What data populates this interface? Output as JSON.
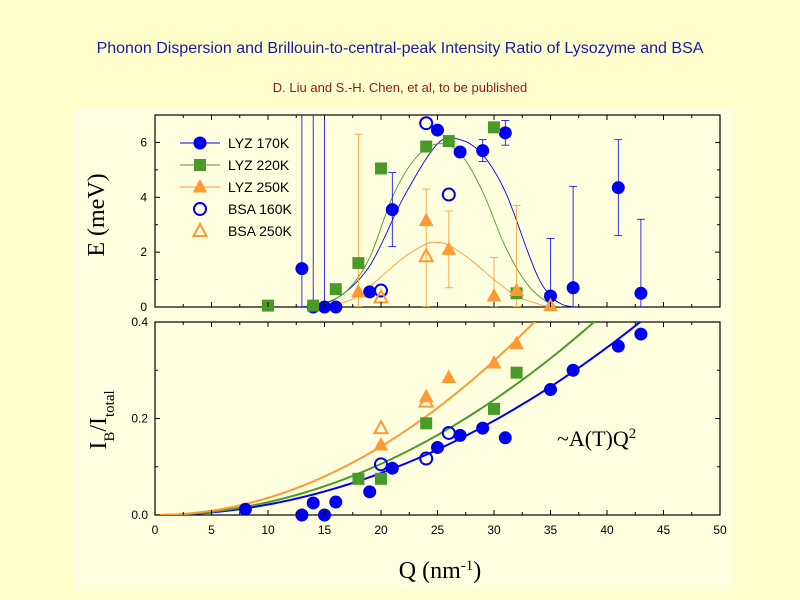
{
  "header": {
    "title": "Phonon Dispersion and Brillouin-to-central-peak Intensity Ratio of Lysozyme and BSA",
    "subtitle": "D. Liu and S.-H. Chen, et al, to be published"
  },
  "chart_data": [
    {
      "type": "scatter",
      "ylabel": "E (meV)",
      "xlim": [
        0,
        50
      ],
      "ylim": [
        0,
        7
      ],
      "yticks": [
        "0",
        "2",
        "4",
        "6"
      ],
      "legend_position": "top-left",
      "series": [
        {
          "name": "LYZ 170K",
          "color": "#0000ee",
          "marker": "filled-circle",
          "points": [
            [
              13,
              1.4
            ],
            [
              14,
              0
            ],
            [
              15,
              0
            ],
            [
              16,
              0
            ],
            [
              19,
              0.55
            ],
            [
              21,
              3.55
            ],
            [
              25,
              6.45
            ],
            [
              27,
              5.65
            ],
            [
              29,
              5.7
            ],
            [
              31,
              6.35
            ],
            [
              35,
              0.4
            ],
            [
              37,
              0.7
            ],
            [
              41,
              4.35
            ],
            [
              43,
              0.5
            ]
          ],
          "error": [
            [
              13,
              0,
              7
            ],
            [
              14,
              0,
              7
            ],
            [
              15,
              0,
              7
            ],
            [
              21,
              2.2,
              4.9
            ],
            [
              29,
              5.3,
              6.1
            ],
            [
              31,
              5.9,
              6.8
            ],
            [
              35,
              0,
              2.5
            ],
            [
              37,
              0,
              4.4
            ],
            [
              41,
              2.6,
              6.1
            ],
            [
              43,
              0,
              3.2
            ]
          ]
        },
        {
          "name": "LYZ 220K",
          "color": "#4a9a2a",
          "marker": "filled-square",
          "points": [
            [
              10,
              0.05
            ],
            [
              14,
              0.05
            ],
            [
              16,
              0.65
            ],
            [
              18,
              1.6
            ],
            [
              20,
              5.05
            ],
            [
              24,
              5.85
            ],
            [
              26,
              6.05
            ],
            [
              30,
              6.55
            ],
            [
              32,
              0.5
            ]
          ],
          "error": []
        },
        {
          "name": "LYZ 250K",
          "color": "#ff9933",
          "marker": "filled-triangle",
          "points": [
            [
              18,
              0.55
            ],
            [
              24,
              3.15
            ],
            [
              26,
              2.1
            ],
            [
              30,
              0.4
            ],
            [
              32,
              0.6
            ],
            [
              35,
              0.05
            ]
          ],
          "error": [
            [
              18,
              0,
              6.3
            ],
            [
              24,
              0,
              4.3
            ],
            [
              26,
              0.7,
              3.5
            ],
            [
              30,
              0,
              1.8
            ],
            [
              32,
              0,
              3.7
            ]
          ]
        },
        {
          "name": "BSA 160K",
          "color": "#0000ee",
          "marker": "open-circle",
          "points": [
            [
              20,
              0.6
            ],
            [
              24,
              6.7
            ],
            [
              26,
              4.1
            ]
          ],
          "error": []
        },
        {
          "name": "BSA 250K",
          "color": "#ff9933",
          "marker": "open-triangle",
          "points": [
            [
              20,
              0.35
            ],
            [
              24,
              1.85
            ]
          ],
          "error": []
        }
      ],
      "fits": [
        {
          "color": "#0000ee",
          "points": [
            [
              13,
              0
            ],
            [
              16,
              0.3
            ],
            [
              19,
              1.5
            ],
            [
              22,
              4.0
            ],
            [
              25,
              5.95
            ],
            [
              27,
              6.1
            ],
            [
              29,
              5.55
            ],
            [
              31,
              4.2
            ],
            [
              33,
              2.0
            ],
            [
              34,
              1.0
            ],
            [
              35,
              0.4
            ],
            [
              36,
              0.1
            ],
            [
              37,
              0
            ]
          ]
        },
        {
          "color": "#4a9a2a",
          "points": [
            [
              13,
              0
            ],
            [
              15,
              0.15
            ],
            [
              17,
              0.6
            ],
            [
              19,
              1.8
            ],
            [
              21,
              4.0
            ],
            [
              23,
              5.4
            ],
            [
              25,
              5.95
            ],
            [
              27,
              5.6
            ],
            [
              29,
              4.2
            ],
            [
              31,
              2.2
            ],
            [
              33,
              0.8
            ],
            [
              35,
              0.1
            ],
            [
              36,
              0
            ]
          ]
        },
        {
          "color": "#ff9933",
          "points": [
            [
              14,
              0
            ],
            [
              16,
              0.1
            ],
            [
              18,
              0.4
            ],
            [
              20,
              1.1
            ],
            [
              22,
              1.8
            ],
            [
              24,
              2.3
            ],
            [
              25,
              2.35
            ],
            [
              26,
              2.25
            ],
            [
              28,
              1.7
            ],
            [
              30,
              1.0
            ],
            [
              32,
              0.4
            ],
            [
              34,
              0.1
            ],
            [
              35,
              0
            ]
          ]
        }
      ]
    },
    {
      "type": "scatter",
      "xlabel": "Q (nm-1)",
      "ylabel": "IB/Itotal",
      "annotation": "~A(T)Q2",
      "xlim": [
        0,
        50
      ],
      "ylim": [
        0,
        0.4
      ],
      "xticks": [
        "0",
        "5",
        "10",
        "15",
        "20",
        "25",
        "30",
        "35",
        "40",
        "45",
        "50"
      ],
      "yticks": [
        "0.0",
        "0.2",
        "0.4"
      ],
      "series": [
        {
          "name": "LYZ 170K",
          "color": "#0000ee",
          "marker": "filled-circle",
          "points": [
            [
              8,
              0.012
            ],
            [
              13,
              0.0
            ],
            [
              14,
              0.025
            ],
            [
              15,
              0.0
            ],
            [
              16,
              0.027
            ],
            [
              19,
              0.048
            ],
            [
              21,
              0.097
            ],
            [
              25,
              0.14
            ],
            [
              27,
              0.165
            ],
            [
              29,
              0.18
            ],
            [
              31,
              0.16
            ],
            [
              35,
              0.26
            ],
            [
              37,
              0.3
            ],
            [
              41,
              0.35
            ],
            [
              43,
              0.375
            ]
          ]
        },
        {
          "name": "LYZ 220K",
          "color": "#4a9a2a",
          "marker": "filled-square",
          "points": [
            [
              18,
              0.075
            ],
            [
              20,
              0.075
            ],
            [
              24,
              0.19
            ],
            [
              30,
              0.22
            ],
            [
              32,
              0.295
            ]
          ]
        },
        {
          "name": "LYZ 250K",
          "color": "#ff9933",
          "marker": "filled-triangle",
          "points": [
            [
              20,
              0.145
            ],
            [
              24,
              0.245
            ],
            [
              26,
              0.285
            ],
            [
              30,
              0.315
            ],
            [
              32,
              0.355
            ]
          ]
        },
        {
          "name": "BSA 160K",
          "color": "#0000ee",
          "marker": "open-circle",
          "points": [
            [
              20,
              0.105
            ],
            [
              24,
              0.117
            ],
            [
              26,
              0.17
            ]
          ]
        },
        {
          "name": "BSA 250K",
          "color": "#ff9933",
          "marker": "open-triangle",
          "points": [
            [
              20,
              0.18
            ],
            [
              24,
              0.235
            ]
          ]
        }
      ],
      "fits": [
        {
          "color": "#0000ee",
          "A": 0.000217
        },
        {
          "color": "#4a9a2a",
          "A": 0.000265
        },
        {
          "color": "#ff9933",
          "A": 0.000355
        }
      ]
    }
  ]
}
